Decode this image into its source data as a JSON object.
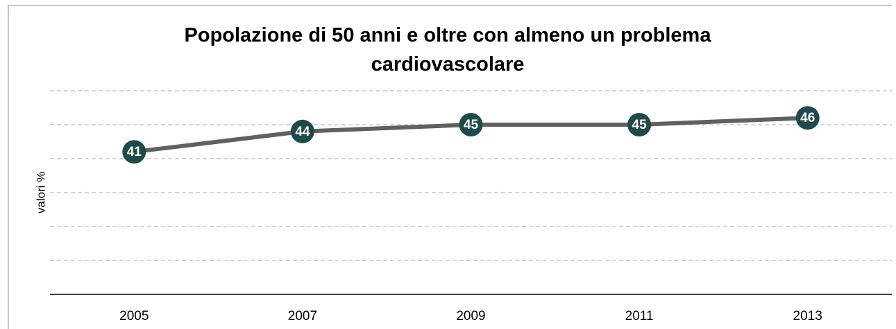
{
  "chart_data": {
    "type": "line",
    "title": "Popolazione di 50 anni e oltre con almeno un problema cardiovascolare",
    "y_label": "valori %",
    "categories": [
      "2005",
      "2007",
      "2009",
      "2011",
      "2013"
    ],
    "values": [
      41,
      44,
      45,
      45,
      46
    ],
    "line_color": "#606060",
    "marker_color": "#1f4a4a",
    "ylim": [
      20,
      50
    ],
    "yticks": [
      20,
      25,
      30,
      35,
      40,
      45,
      50
    ],
    "ytick_labels": false,
    "grid": true
  }
}
